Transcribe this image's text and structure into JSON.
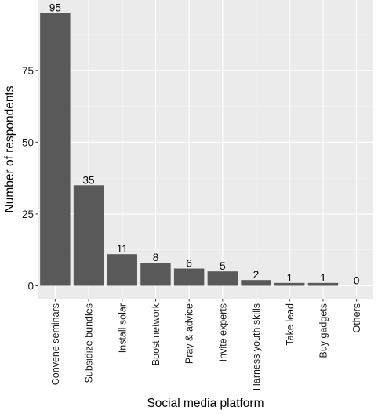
{
  "chart_data": {
    "type": "bar",
    "categories": [
      "Convene seminars",
      "Subsidize bundles",
      "Install solar",
      "Boost network",
      "Pray & advice",
      "Invite experts",
      "Harness youth skills",
      "Take lead",
      "Buy gadgets",
      "Others"
    ],
    "values": [
      95,
      35,
      11,
      8,
      6,
      5,
      2,
      1,
      1,
      0
    ],
    "data_labels": [
      "95",
      "35",
      "11",
      "8",
      "6",
      "5",
      "2",
      "1",
      "1",
      "0"
    ],
    "xlabel": "Social media platform",
    "ylabel": "Number of respondents",
    "ylim": [
      -4.5,
      99.5
    ],
    "yticks": [
      0,
      25,
      50,
      75
    ],
    "ytick_labels": [
      "0",
      "25",
      "50",
      "75"
    ],
    "grid": true,
    "legend": "none",
    "colors": {
      "bar": "#595959",
      "panel": "#ebebeb",
      "grid_major": "#ffffff",
      "grid_minor": "#f5f5f5"
    }
  }
}
